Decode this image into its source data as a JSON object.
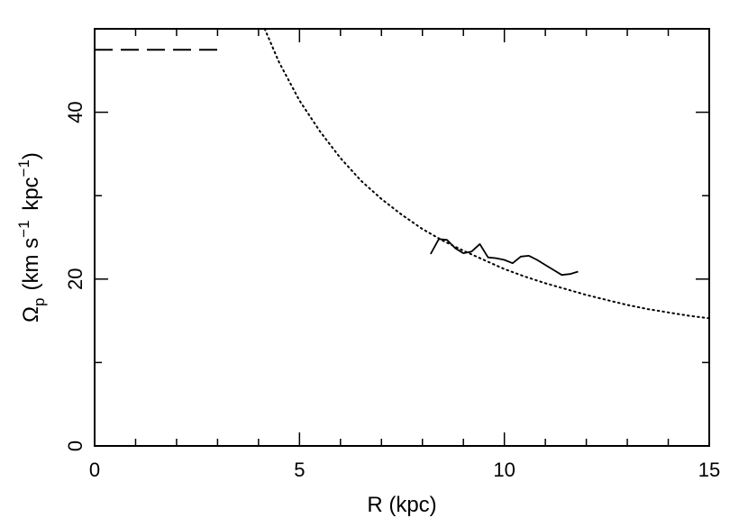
{
  "chart_data": {
    "type": "line",
    "title": "",
    "xlabel": "R (kpc)",
    "ylabel": {
      "symbol": "Ω",
      "subscript": "p",
      "units_main": "(km s",
      "exp1": "−1",
      "units_mid": " kpc",
      "exp2": "−1",
      "units_end": ")"
    },
    "xlim": [
      0,
      15
    ],
    "ylim": [
      0,
      50
    ],
    "x_ticks": [
      {
        "value": 0,
        "label": "0"
      },
      {
        "value": 5,
        "label": "5"
      },
      {
        "value": 10,
        "label": "10"
      },
      {
        "value": 15,
        "label": "15"
      }
    ],
    "y_ticks": [
      {
        "value": 0,
        "label": "0"
      },
      {
        "value": 20,
        "label": "20"
      },
      {
        "value": 40,
        "label": "40"
      }
    ],
    "x_minor_step": 1,
    "y_minor_step": 10,
    "grid": false,
    "series": [
      {
        "style": "dashed",
        "color": "#000000",
        "x": [
          0,
          3.0
        ],
        "y": [
          47.5,
          47.5
        ]
      },
      {
        "style": "dotted",
        "color": "#000000",
        "x": [
          4.15,
          4.5,
          5.0,
          5.5,
          6.0,
          6.5,
          7.0,
          7.5,
          8.0,
          8.5,
          9.0,
          9.5,
          10.0,
          10.5,
          11.0,
          11.5,
          12.0,
          12.5,
          13.0,
          13.5,
          14.0,
          14.5,
          15.0
        ],
        "y": [
          50.0,
          46.0,
          41.4,
          37.7,
          34.5,
          31.8,
          29.6,
          27.7,
          26.0,
          24.6,
          23.4,
          22.3,
          21.2,
          20.3,
          19.5,
          18.8,
          18.1,
          17.5,
          16.9,
          16.4,
          16.0,
          15.6,
          15.3
        ]
      },
      {
        "style": "solid",
        "color": "#000000",
        "x": [
          8.2,
          8.4,
          8.6,
          8.8,
          9.0,
          9.2,
          9.4,
          9.6,
          9.8,
          10.0,
          10.2,
          10.4,
          10.6,
          10.8,
          11.0,
          11.2,
          11.4,
          11.6,
          11.8
        ],
        "y": [
          23.0,
          24.8,
          24.7,
          23.7,
          23.1,
          23.3,
          24.2,
          22.6,
          22.5,
          22.3,
          21.9,
          22.7,
          22.8,
          22.3,
          21.7,
          21.1,
          20.5,
          20.6,
          20.9
        ]
      }
    ]
  }
}
